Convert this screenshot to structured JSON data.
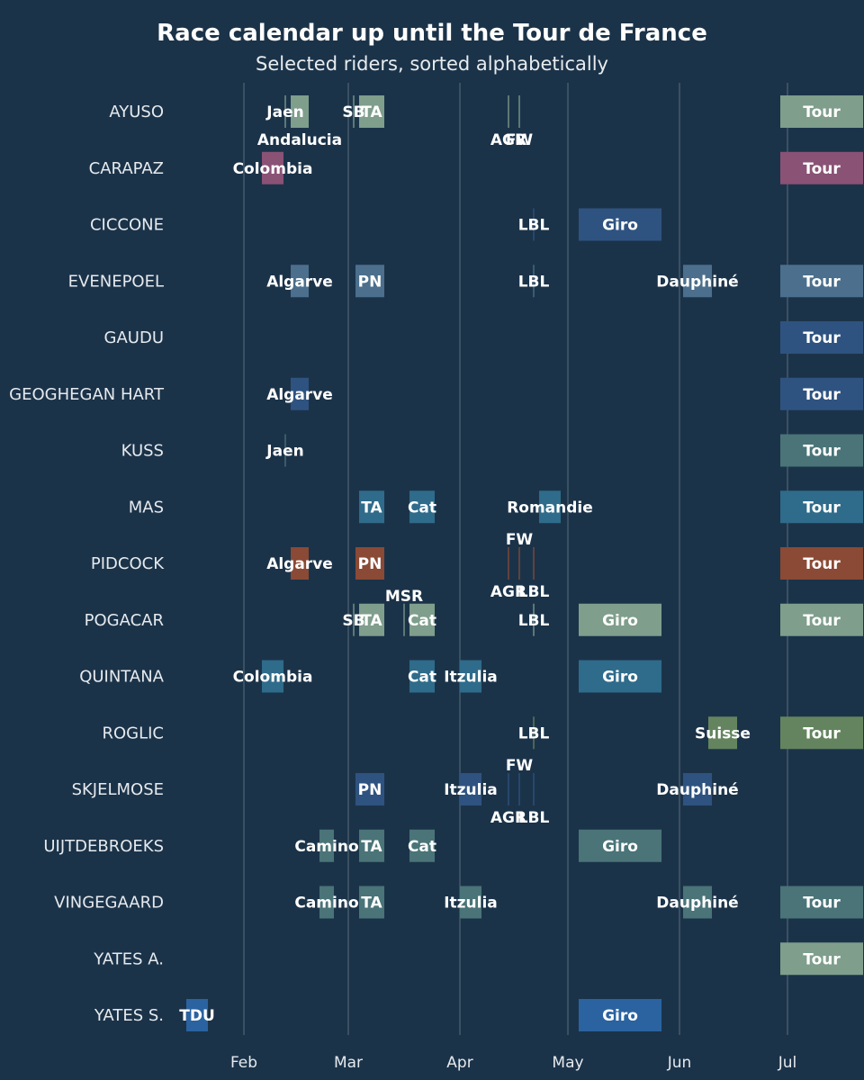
{
  "chart_data": {
    "type": "gantt",
    "title": "Race calendar up until the Tour de France",
    "subtitle": "Selected riders, sorted alphabetically",
    "months": [
      "Feb",
      "Mar",
      "Apr",
      "May",
      "Jun",
      "Jul"
    ],
    "riders": [
      {
        "name": "AYUSO",
        "color": "#7f9e8c",
        "races": [
          {
            "label": "Jaen",
            "start": "2024-02-12",
            "end": "2024-02-12"
          },
          {
            "label": "Andalucia",
            "start": "2024-02-14",
            "end": "2024-02-18",
            "label_pos": "below"
          },
          {
            "label": "SB",
            "start": "2024-03-02",
            "end": "2024-03-02"
          },
          {
            "label": "TA",
            "start": "2024-03-04",
            "end": "2024-03-10"
          },
          {
            "label": "AGR",
            "start": "2024-04-14",
            "end": "2024-04-14",
            "label_pos": "below"
          },
          {
            "label": "FW",
            "start": "2024-04-17",
            "end": "2024-04-17",
            "label_pos": "below"
          },
          {
            "label": "Tour",
            "start": "2024-06-29",
            "end": "2024-07-21"
          }
        ]
      },
      {
        "name": "CARAPAZ",
        "color": "#8a5275",
        "races": [
          {
            "label": "Colombia",
            "start": "2024-02-06",
            "end": "2024-02-11"
          },
          {
            "label": "Tour",
            "start": "2024-06-29",
            "end": "2024-07-21"
          }
        ]
      },
      {
        "name": "CICCONE",
        "color": "#2f5380",
        "races": [
          {
            "label": "LBL",
            "start": "2024-04-21",
            "end": "2024-04-21"
          },
          {
            "label": "Giro",
            "start": "2024-05-04",
            "end": "2024-05-26"
          }
        ]
      },
      {
        "name": "EVENEPOEL",
        "color": "#4b6f8c",
        "races": [
          {
            "label": "Algarve",
            "start": "2024-02-14",
            "end": "2024-02-18"
          },
          {
            "label": "PN",
            "start": "2024-03-03",
            "end": "2024-03-10"
          },
          {
            "label": "LBL",
            "start": "2024-04-21",
            "end": "2024-04-21"
          },
          {
            "label": "Dauphiné",
            "start": "2024-06-02",
            "end": "2024-06-09"
          },
          {
            "label": "Tour",
            "start": "2024-06-29",
            "end": "2024-07-21"
          }
        ]
      },
      {
        "name": "GAUDU",
        "color": "#2f5380",
        "races": [
          {
            "label": "Tour",
            "start": "2024-06-29",
            "end": "2024-07-21"
          }
        ]
      },
      {
        "name": "GEOGHEGAN HART",
        "color": "#2f5380",
        "races": [
          {
            "label": "Algarve",
            "start": "2024-02-14",
            "end": "2024-02-18"
          },
          {
            "label": "Tour",
            "start": "2024-06-29",
            "end": "2024-07-21"
          }
        ]
      },
      {
        "name": "KUSS",
        "color": "#4a7478",
        "races": [
          {
            "label": "Jaen",
            "start": "2024-02-12",
            "end": "2024-02-12"
          },
          {
            "label": "Tour",
            "start": "2024-06-29",
            "end": "2024-07-21"
          }
        ]
      },
      {
        "name": "MAS",
        "color": "#2f6b8a",
        "races": [
          {
            "label": "TA",
            "start": "2024-03-04",
            "end": "2024-03-10"
          },
          {
            "label": "Cat",
            "start": "2024-03-18",
            "end": "2024-03-24"
          },
          {
            "label": "Romandie",
            "start": "2024-04-23",
            "end": "2024-04-28"
          },
          {
            "label": "Tour",
            "start": "2024-06-29",
            "end": "2024-07-21"
          }
        ]
      },
      {
        "name": "PIDCOCK",
        "color": "#8a4a35",
        "races": [
          {
            "label": "Algarve",
            "start": "2024-02-14",
            "end": "2024-02-18"
          },
          {
            "label": "PN",
            "start": "2024-03-03",
            "end": "2024-03-10"
          },
          {
            "label": "FW",
            "start": "2024-04-17",
            "end": "2024-04-17",
            "label_pos": "above"
          },
          {
            "label": "AGR",
            "start": "2024-04-14",
            "end": "2024-04-14",
            "label_pos": "below"
          },
          {
            "label": "LBL",
            "start": "2024-04-21",
            "end": "2024-04-21",
            "label_pos": "below"
          },
          {
            "label": "Tour",
            "start": "2024-06-29",
            "end": "2024-07-21"
          }
        ]
      },
      {
        "name": "POGACAR",
        "color": "#7f9e8c",
        "races": [
          {
            "label": "SB",
            "start": "2024-03-02",
            "end": "2024-03-02"
          },
          {
            "label": "TA",
            "start": "2024-03-04",
            "end": "2024-03-10"
          },
          {
            "label": "MSR",
            "start": "2024-03-16",
            "end": "2024-03-16",
            "label_pos": "above"
          },
          {
            "label": "Cat",
            "start": "2024-03-18",
            "end": "2024-03-24"
          },
          {
            "label": "LBL",
            "start": "2024-04-21",
            "end": "2024-04-21"
          },
          {
            "label": "Giro",
            "start": "2024-05-04",
            "end": "2024-05-26"
          },
          {
            "label": "Tour",
            "start": "2024-06-29",
            "end": "2024-07-21"
          }
        ]
      },
      {
        "name": "QUINTANA",
        "color": "#2f6b8a",
        "races": [
          {
            "label": "Colombia",
            "start": "2024-02-06",
            "end": "2024-02-11"
          },
          {
            "label": "Cat",
            "start": "2024-03-18",
            "end": "2024-03-24"
          },
          {
            "label": "Itzulia",
            "start": "2024-04-01",
            "end": "2024-04-06"
          },
          {
            "label": "Giro",
            "start": "2024-05-04",
            "end": "2024-05-26"
          }
        ]
      },
      {
        "name": "ROGLIC",
        "color": "#64845f",
        "races": [
          {
            "label": "LBL",
            "start": "2024-04-21",
            "end": "2024-04-21"
          },
          {
            "label": "Suisse",
            "start": "2024-06-09",
            "end": "2024-06-16"
          },
          {
            "label": "Tour",
            "start": "2024-06-29",
            "end": "2024-07-21"
          }
        ]
      },
      {
        "name": "SKJELMOSE",
        "color": "#2f5380",
        "races": [
          {
            "label": "PN",
            "start": "2024-03-03",
            "end": "2024-03-10"
          },
          {
            "label": "Itzulia",
            "start": "2024-04-01",
            "end": "2024-04-06"
          },
          {
            "label": "FW",
            "start": "2024-04-17",
            "end": "2024-04-17",
            "label_pos": "above"
          },
          {
            "label": "AGR",
            "start": "2024-04-14",
            "end": "2024-04-14",
            "label_pos": "below"
          },
          {
            "label": "LBL",
            "start": "2024-04-21",
            "end": "2024-04-21",
            "label_pos": "below"
          },
          {
            "label": "Dauphiné",
            "start": "2024-06-02",
            "end": "2024-06-09"
          }
        ]
      },
      {
        "name": "UIJTDEBROEKS",
        "color": "#4a7478",
        "races": [
          {
            "label": "Camino",
            "start": "2024-02-22",
            "end": "2024-02-25"
          },
          {
            "label": "TA",
            "start": "2024-03-04",
            "end": "2024-03-10"
          },
          {
            "label": "Cat",
            "start": "2024-03-18",
            "end": "2024-03-24"
          },
          {
            "label": "Giro",
            "start": "2024-05-04",
            "end": "2024-05-26"
          }
        ]
      },
      {
        "name": "VINGEGAARD",
        "color": "#4a7478",
        "races": [
          {
            "label": "Camino",
            "start": "2024-02-22",
            "end": "2024-02-25"
          },
          {
            "label": "TA",
            "start": "2024-03-04",
            "end": "2024-03-10"
          },
          {
            "label": "Itzulia",
            "start": "2024-04-01",
            "end": "2024-04-06"
          },
          {
            "label": "Dauphiné",
            "start": "2024-06-02",
            "end": "2024-06-09"
          },
          {
            "label": "Tour",
            "start": "2024-06-29",
            "end": "2024-07-21"
          }
        ]
      },
      {
        "name": "YATES A.",
        "color": "#7f9e8c",
        "races": [
          {
            "label": "Tour",
            "start": "2024-06-29",
            "end": "2024-07-21"
          }
        ]
      },
      {
        "name": "YATES S.",
        "color": "#2a63a0",
        "races": [
          {
            "label": "TDU",
            "start": "2024-01-16",
            "end": "2024-01-21"
          },
          {
            "label": "Giro",
            "start": "2024-05-04",
            "end": "2024-05-26"
          }
        ]
      }
    ]
  }
}
